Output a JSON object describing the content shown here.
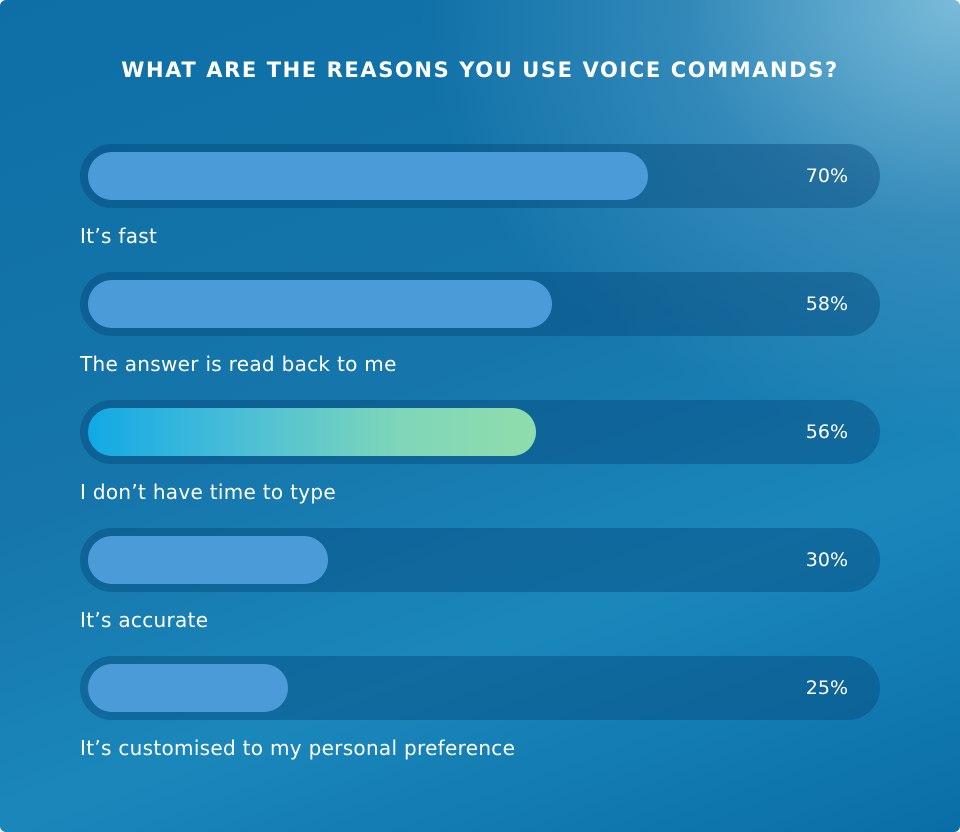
{
  "colors": {
    "background": "#0d6fa6",
    "track": "#08507f",
    "bar": "#4a9bd7",
    "highlight_start": "#12a8e4",
    "highlight_end": "#8fddac",
    "text": "#ffffff"
  },
  "chart_data": {
    "type": "bar",
    "orientation": "horizontal",
    "title": "WHAT ARE THE REASONS YOU USE VOICE COMMANDS?",
    "categories": [
      "It’s fast",
      "The answer is read back to me",
      "I don’t have time to type",
      "It’s accurate",
      "It’s customised to my personal preference"
    ],
    "values": [
      70,
      58,
      56,
      30,
      25
    ],
    "value_labels": [
      "70%",
      "58%",
      "56%",
      "30%",
      "25%"
    ],
    "highlighted_index": 2,
    "xlim": [
      0,
      100
    ],
    "grid": false,
    "legend": "none"
  }
}
